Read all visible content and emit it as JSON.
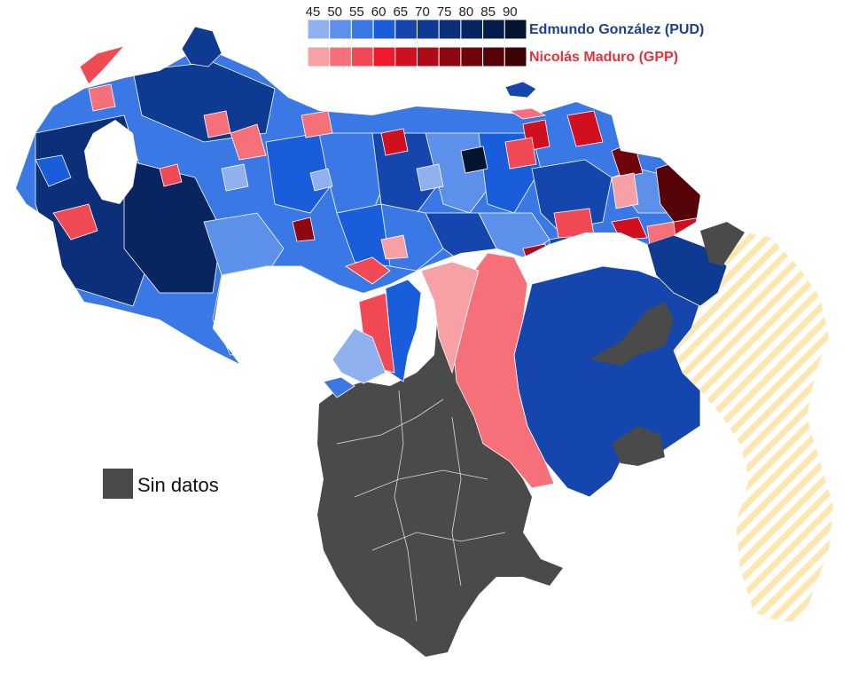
{
  "legend": {
    "thresholds": [
      "45",
      "50",
      "55",
      "60",
      "65",
      "70",
      "75",
      "80",
      "85",
      "90"
    ],
    "candidates": [
      {
        "name": "Edmundo González (PUD)",
        "text_color": "#1f3f8f",
        "colors": [
          "#8fb1f0",
          "#5d90ea",
          "#3a78e6",
          "#1a5ddb",
          "#1446ad",
          "#0f3a91",
          "#0b2f78",
          "#082562",
          "#061c4a",
          "#041431"
        ]
      },
      {
        "name": "Nicolás Maduro (GPP)",
        "text_color": "#e8303c",
        "colors": [
          "#f7a0a6",
          "#f57079",
          "#f24a55",
          "#ee1c2b",
          "#d0101f",
          "#b00a18",
          "#8d0612",
          "#70040d",
          "#550309",
          "#3a0205"
        ]
      }
    ]
  },
  "no_data": {
    "label": "Sin datos",
    "color": "#4a4a4a"
  },
  "claimed_territory": {
    "color": "#fde6b0"
  }
}
